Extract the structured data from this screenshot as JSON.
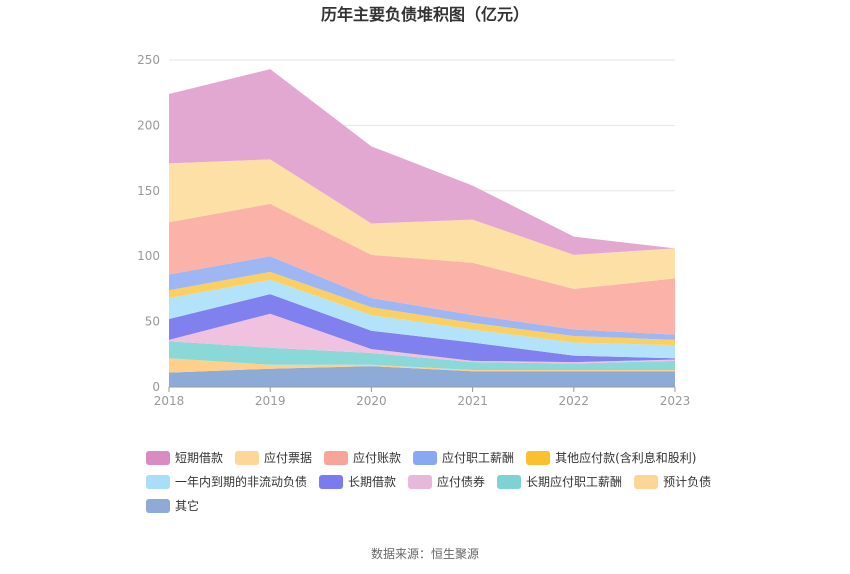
{
  "chart_data": {
    "type": "area",
    "stacked": true,
    "title": "历年主要负债堆积图（亿元）",
    "source": "数据来源：恒生聚源",
    "x": [
      "2018",
      "2019",
      "2020",
      "2021",
      "2022",
      "2023"
    ],
    "ylim": [
      0,
      250
    ],
    "yticks": [
      "0",
      "50",
      "100",
      "150",
      "200",
      "250"
    ],
    "grid": true,
    "legend_position": "bottom",
    "series": [
      {
        "name": "其它",
        "color": "#8eabd7",
        "values": [
          11,
          14,
          16,
          12,
          12,
          12
        ]
      },
      {
        "name": "预计负债",
        "color": "#ffd08a",
        "values": [
          11,
          3,
          1,
          1,
          1,
          1
        ]
      },
      {
        "name": "长期应付职工薪酬",
        "color": "#8ad8d8",
        "values": [
          13,
          13,
          9,
          6,
          5,
          7
        ]
      },
      {
        "name": "应付债券",
        "color": "#f1c2df",
        "values": [
          1,
          26,
          3,
          1,
          1,
          1
        ]
      },
      {
        "name": "长期借款",
        "color": "#8080ee",
        "values": [
          16,
          15,
          14,
          14,
          5,
          1
        ]
      },
      {
        "name": "一年内到期的非流动负债",
        "color": "#b3e2fb",
        "values": [
          16,
          11,
          12,
          10,
          10,
          10
        ]
      },
      {
        "name": "其他应付款(含利息和股利)",
        "color": "#fcd060",
        "values": [
          6,
          6,
          6,
          5,
          5,
          4
        ]
      },
      {
        "name": "应付职工薪酬",
        "color": "#9eb6f4",
        "values": [
          12,
          12,
          7,
          6,
          5,
          4
        ]
      },
      {
        "name": "应付账款",
        "color": "#fbb2a8",
        "values": [
          40,
          40,
          33,
          40,
          31,
          43
        ]
      },
      {
        "name": "应付票据",
        "color": "#fde0a6",
        "values": [
          45,
          34,
          24,
          33,
          26,
          23
        ]
      },
      {
        "name": "短期借款",
        "color": "#e3a8d2",
        "values": [
          53,
          69,
          59,
          26,
          14,
          0
        ]
      }
    ],
    "legend_order": [
      "短期借款",
      "应付票据",
      "应付账款",
      "应付职工薪酬",
      "其他应付款(含利息和股利)",
      "一年内到期的非流动负债",
      "长期借款",
      "应付债券",
      "长期应付职工薪酬",
      "预计负债",
      "其它"
    ],
    "legend_swatch_colors": {
      "短期借款": "#d98cc2",
      "应付票据": "#fdd69a",
      "应付账款": "#f8a498",
      "应付职工薪酬": "#8aa8f2",
      "其他应付款(含利息和股利)": "#f9c12e",
      "一年内到期的非流动负债": "#a9def8",
      "长期借款": "#7b7bf0",
      "应付债券": "#e6b8da",
      "长期应付职工薪酬": "#7dd3d3",
      "预计负债": "#fdd596",
      "其它": "#8eabd7"
    },
    "colors": {
      "grid": "#e6e6e6",
      "axis": "#999999",
      "text": "#333333"
    }
  }
}
